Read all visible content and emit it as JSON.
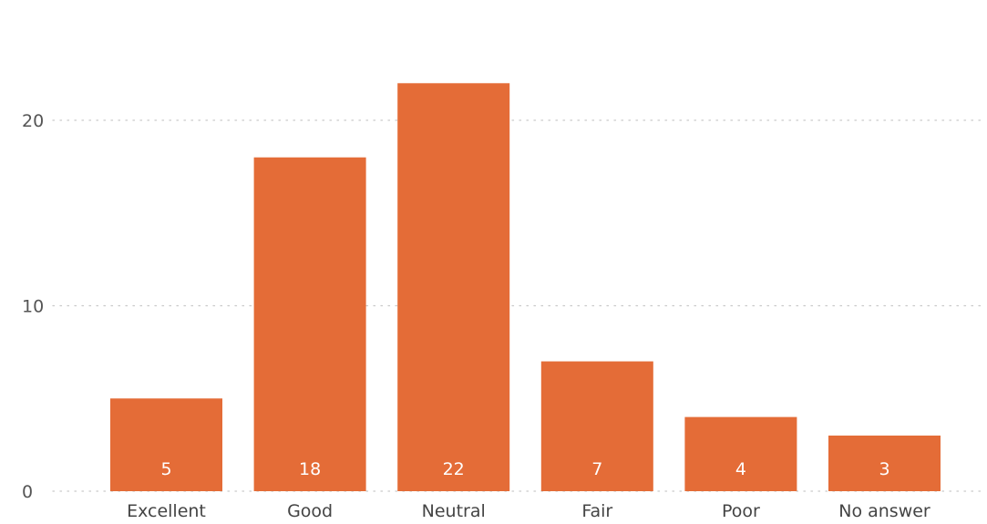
{
  "chart_data": {
    "type": "bar",
    "title": "",
    "xlabel": "",
    "ylabel": "",
    "categories": [
      "Excellent",
      "Good",
      "Neutral",
      "Fair",
      "Poor",
      "No answer"
    ],
    "values": [
      5,
      18,
      22,
      7,
      4,
      3
    ],
    "data_labels": [
      "5",
      "18",
      "22",
      "7",
      "4",
      "3"
    ],
    "ylim": [
      0,
      23
    ],
    "yticks": [
      0,
      10,
      20
    ],
    "ytick_labels": [
      "0",
      "10",
      "20"
    ],
    "grid": true,
    "legend": "none",
    "bar_color": "#E46C37",
    "data_label_color": "#FFFFFF",
    "grid_color": "#C9C9C9",
    "text_color": "#555555"
  }
}
